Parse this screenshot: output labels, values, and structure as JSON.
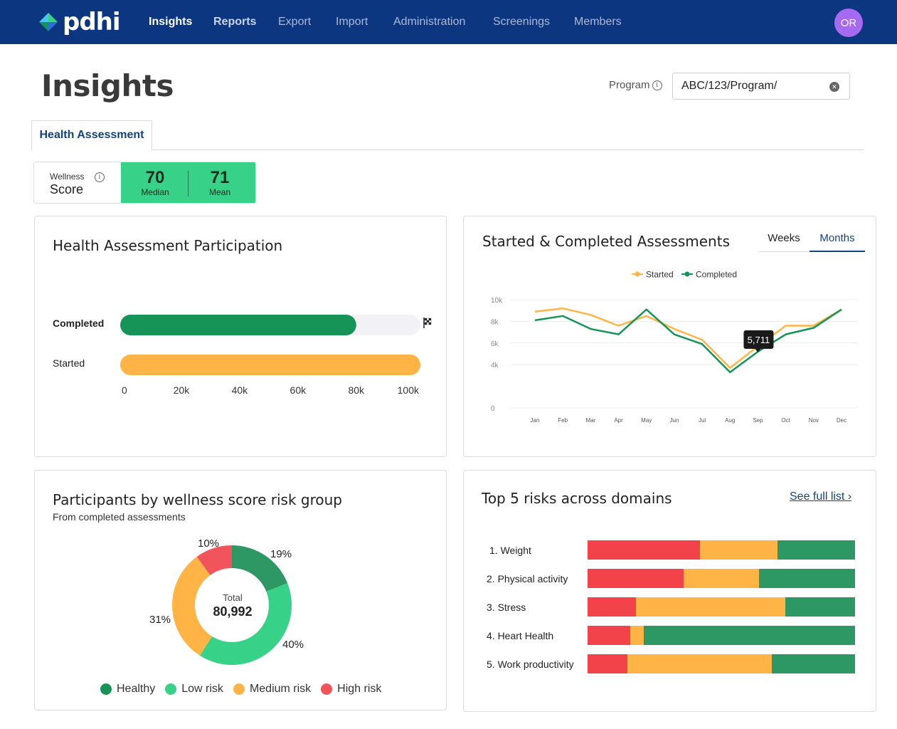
{
  "nav": {
    "logo_text": "pdhi",
    "items": [
      {
        "label": "Insights"
      },
      {
        "label": "Reports"
      },
      {
        "label": "Export"
      },
      {
        "label": "Import"
      },
      {
        "label": "Administration"
      },
      {
        "label": "Screenings"
      },
      {
        "label": "Members"
      }
    ],
    "avatar_initials": "OR"
  },
  "page": {
    "title": "Insights"
  },
  "program": {
    "label": "Program",
    "value": "ABC/123/Program/"
  },
  "tabs": [
    {
      "label": "Health Assessment"
    }
  ],
  "wellness": {
    "label_small": "Wellness",
    "label_big": "Score",
    "median_value": "70",
    "median_label": "Median",
    "mean_value": "71",
    "mean_label": "Mean"
  },
  "participation": {
    "title": "Health Assessment Participation",
    "chart_data": {
      "type": "bar",
      "orientation": "horizontal",
      "categories": [
        "Completed",
        "Started"
      ],
      "values": [
        81000,
        103000
      ],
      "target_marker_at": 103000,
      "xlim": [
        0,
        103000
      ],
      "xticks": [
        "0",
        "20k",
        "40k",
        "60k",
        "80k",
        "100k"
      ],
      "xtick_values": [
        0,
        20000,
        40000,
        60000,
        80000,
        100000
      ],
      "colors": [
        "#169457",
        "#ffb445"
      ]
    }
  },
  "started_completed": {
    "title": "Started & Completed Assessments",
    "toggle": {
      "weeks": "Weeks",
      "months": "Months"
    },
    "tooltip": "5,711",
    "chart_data": {
      "type": "line",
      "x": [
        "Jan",
        "Feb",
        "Mar",
        "Apr",
        "May",
        "Jun",
        "Jul",
        "Aug",
        "Sep",
        "Oct",
        "Nov",
        "Dec"
      ],
      "series": [
        {
          "name": "Started",
          "color": "#ffb445",
          "values": [
            8900,
            9200,
            8600,
            7600,
            8500,
            7300,
            6300,
            3700,
            5711,
            7600,
            7600,
            9100
          ]
        },
        {
          "name": "Completed",
          "color": "#169457",
          "values": [
            8100,
            8500,
            7300,
            6800,
            9100,
            6800,
            5900,
            3300,
            5200,
            6800,
            7400,
            9100
          ]
        }
      ],
      "ylim": [
        0,
        10000
      ],
      "yticks": [
        "10k",
        "8k",
        "6k",
        "4k",
        "0"
      ],
      "ytick_values": [
        10000,
        8000,
        6000,
        4000,
        0
      ]
    }
  },
  "risk_groups": {
    "title": "Participants by wellness score risk group",
    "subtitle": "From completed assessments",
    "total_label": "Total",
    "total_value": "80,992",
    "chart_data": {
      "type": "pie",
      "labels": [
        "Healthy",
        "Low risk",
        "Medium risk",
        "High risk"
      ],
      "values": [
        19,
        40,
        31,
        10
      ],
      "value_labels": [
        "19%",
        "40%",
        "31%",
        "10%"
      ],
      "colors": [
        "#2e9865",
        "#38d188",
        "#ffb445",
        "#f2545b"
      ]
    }
  },
  "top_risks": {
    "title": "Top 5 risks across domains",
    "see_full_list": "See full list ›",
    "chart_data": {
      "type": "bar",
      "stacked": true,
      "orientation": "horizontal",
      "categories": [
        "1. Weight",
        "2. Physical activity",
        "3. Stress",
        "4. Heart Health",
        "5. Work productivity"
      ],
      "series": [
        {
          "color": "#f2434b",
          "values": [
            42,
            36,
            18,
            16,
            15
          ]
        },
        {
          "color": "#ffb445",
          "values": [
            29,
            28,
            56,
            5,
            54
          ]
        },
        {
          "color": "#2e9865",
          "values": [
            29,
            36,
            26,
            79,
            31
          ]
        }
      ]
    }
  }
}
